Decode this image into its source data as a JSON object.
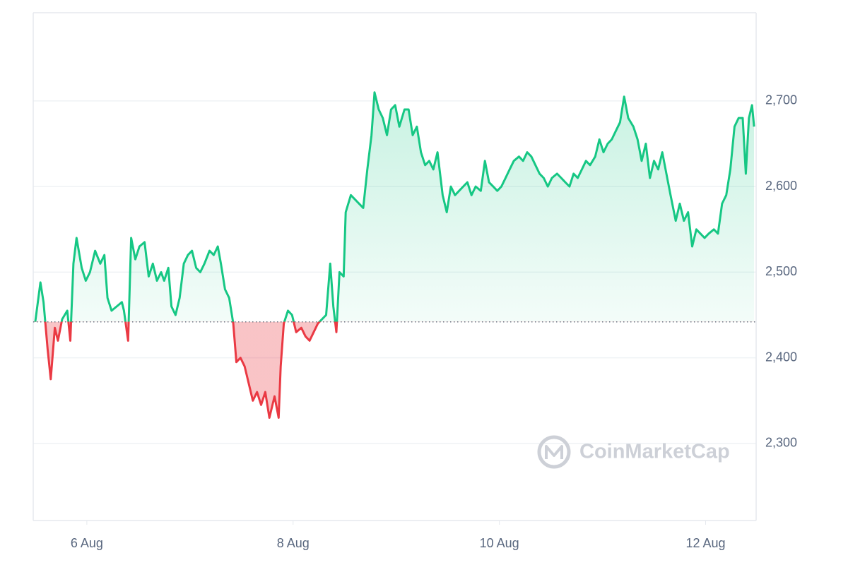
{
  "chart_data": {
    "type": "line",
    "watermark": "CoinMarketCap",
    "x": [
      5.5,
      5.55,
      5.58,
      5.62,
      5.65,
      5.69,
      5.72,
      5.76,
      5.81,
      5.84,
      5.87,
      5.9,
      5.95,
      5.99,
      6.03,
      6.08,
      6.13,
      6.17,
      6.2,
      6.24,
      6.29,
      6.34,
      6.36,
      6.4,
      6.43,
      6.47,
      6.51,
      6.56,
      6.6,
      6.64,
      6.68,
      6.72,
      6.75,
      6.79,
      6.82,
      6.86,
      6.9,
      6.94,
      6.98,
      7.02,
      7.06,
      7.1,
      7.14,
      7.19,
      7.23,
      7.27,
      7.3,
      7.34,
      7.38,
      7.42,
      7.45,
      7.49,
      7.53,
      7.57,
      7.61,
      7.65,
      7.69,
      7.73,
      7.77,
      7.82,
      7.86,
      7.88,
      7.91,
      7.95,
      7.99,
      8.03,
      8.08,
      8.12,
      8.16,
      8.2,
      8.24,
      8.28,
      8.32,
      8.36,
      8.39,
      8.42,
      8.45,
      8.49,
      8.51,
      8.56,
      8.6,
      8.64,
      8.68,
      8.72,
      8.76,
      8.79,
      8.83,
      8.87,
      8.91,
      8.95,
      8.99,
      9.03,
      9.08,
      9.12,
      9.16,
      9.2,
      9.24,
      9.28,
      9.32,
      9.36,
      9.4,
      9.45,
      9.49,
      9.53,
      9.57,
      9.61,
      9.65,
      9.69,
      9.73,
      9.77,
      9.82,
      9.86,
      9.9,
      9.94,
      9.98,
      10.02,
      10.06,
      10.1,
      10.14,
      10.19,
      10.23,
      10.27,
      10.31,
      10.35,
      10.39,
      10.43,
      10.47,
      10.51,
      10.56,
      10.6,
      10.64,
      10.68,
      10.72,
      10.76,
      10.8,
      10.84,
      10.88,
      10.93,
      10.97,
      11.01,
      11.05,
      11.09,
      11.13,
      11.17,
      11.21,
      11.25,
      11.3,
      11.34,
      11.38,
      11.42,
      11.46,
      11.5,
      11.54,
      11.58,
      11.62,
      11.66,
      11.71,
      11.75,
      11.79,
      11.83,
      11.87,
      11.91,
      11.95,
      11.99,
      12.03,
      12.08,
      12.12,
      12.16,
      12.2,
      12.24,
      12.28,
      12.32,
      12.36,
      12.39,
      12.42,
      12.45,
      12.47
    ],
    "values": [
      2442,
      2488,
      2465,
      2410,
      2375,
      2435,
      2420,
      2445,
      2455,
      2420,
      2510,
      2540,
      2505,
      2490,
      2500,
      2525,
      2510,
      2520,
      2470,
      2455,
      2460,
      2465,
      2455,
      2420,
      2540,
      2515,
      2530,
      2535,
      2495,
      2510,
      2490,
      2500,
      2490,
      2505,
      2460,
      2450,
      2470,
      2510,
      2520,
      2525,
      2505,
      2500,
      2510,
      2525,
      2520,
      2530,
      2510,
      2480,
      2470,
      2440,
      2395,
      2400,
      2390,
      2370,
      2350,
      2360,
      2345,
      2360,
      2330,
      2355,
      2330,
      2390,
      2440,
      2455,
      2450,
      2430,
      2435,
      2425,
      2420,
      2430,
      2440,
      2445,
      2450,
      2510,
      2460,
      2430,
      2500,
      2495,
      2570,
      2590,
      2585,
      2580,
      2575,
      2620,
      2660,
      2710,
      2690,
      2680,
      2660,
      2690,
      2695,
      2670,
      2690,
      2690,
      2660,
      2670,
      2640,
      2625,
      2630,
      2620,
      2640,
      2590,
      2570,
      2600,
      2590,
      2595,
      2600,
      2605,
      2590,
      2600,
      2595,
      2630,
      2605,
      2600,
      2595,
      2600,
      2610,
      2620,
      2630,
      2635,
      2630,
      2640,
      2635,
      2625,
      2615,
      2610,
      2600,
      2610,
      2615,
      2610,
      2605,
      2600,
      2615,
      2610,
      2620,
      2630,
      2625,
      2635,
      2655,
      2640,
      2650,
      2655,
      2665,
      2675,
      2705,
      2680,
      2670,
      2655,
      2630,
      2650,
      2610,
      2630,
      2620,
      2640,
      2615,
      2590,
      2560,
      2580,
      2560,
      2570,
      2530,
      2550,
      2545,
      2540,
      2545,
      2550,
      2545,
      2580,
      2590,
      2620,
      2670,
      2680,
      2680,
      2615,
      2680,
      2695,
      2670
    ],
    "baseline": 2442,
    "color_up": "#16c784",
    "color_down": "#ea3943",
    "xlim": [
      5.48,
      12.49
    ],
    "xticks": [
      {
        "value": 6,
        "label": "6 Aug"
      },
      {
        "value": 8,
        "label": "8 Aug"
      },
      {
        "value": 10,
        "label": "10 Aug"
      },
      {
        "value": 12,
        "label": "12 Aug"
      }
    ],
    "ylim": [
      2210,
      2803
    ],
    "yticks": [
      {
        "value": 2300,
        "label": "2,300"
      },
      {
        "value": 2400,
        "label": "2,400"
      },
      {
        "value": 2500,
        "label": "2,500"
      },
      {
        "value": 2600,
        "label": "2,600"
      },
      {
        "value": 2700,
        "label": "2,700"
      }
    ],
    "grid": true
  }
}
